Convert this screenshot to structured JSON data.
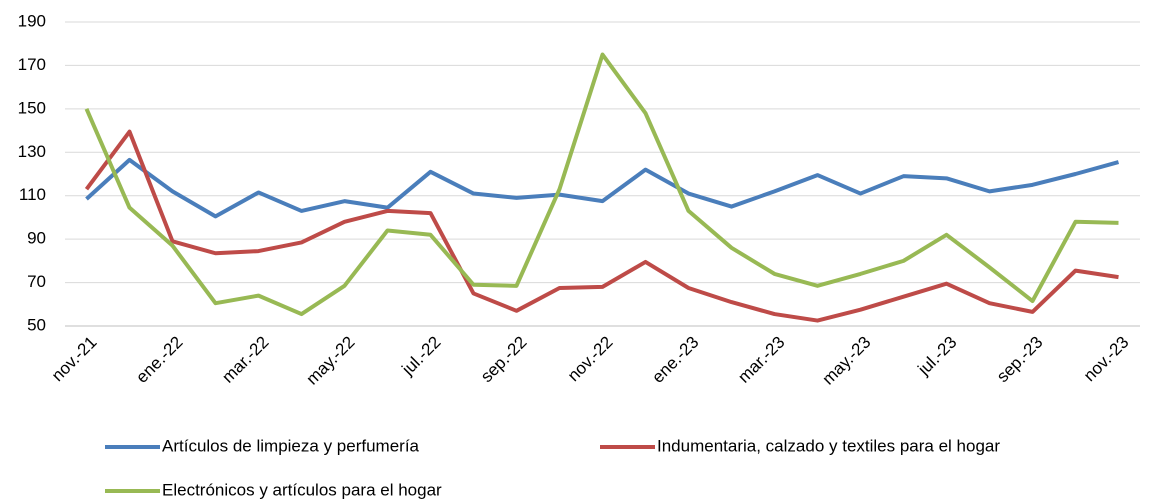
{
  "chart_data": {
    "type": "line",
    "categories": [
      "nov.-21",
      null,
      "ene.-22",
      null,
      "mar.-22",
      null,
      "may.-22",
      null,
      "jul.-22",
      null,
      "sep.-22",
      null,
      "nov.-22",
      null,
      "ene.-23",
      null,
      "mar.-23",
      null,
      "may.-23",
      null,
      "jul.-23",
      null,
      "sep.-23",
      null,
      "nov.-23"
    ],
    "series": [
      {
        "name": "Artículos de limpieza y perfumería",
        "color": "#4a7ebb",
        "values": [
          108.5,
          126.5,
          112,
          100.5,
          111.5,
          103,
          107.5,
          104.5,
          121,
          111,
          109,
          110.5,
          107.5,
          122,
          111,
          105,
          112,
          119.5,
          111,
          119,
          118,
          112,
          115,
          120,
          125.5
        ]
      },
      {
        "name": "Indumentaria, calzado y textiles para el hogar",
        "color": "#be4b48",
        "values": [
          113,
          139.5,
          89,
          83.5,
          84.5,
          88.5,
          98,
          103,
          102,
          65,
          57,
          67.5,
          68,
          79.5,
          67.5,
          61,
          55.5,
          52.5,
          57.5,
          63.5,
          69.5,
          60.5,
          56.5,
          75.5,
          72.5
        ]
      },
      {
        "name": "Electrónicos y artículos para el hogar",
        "color": "#98b954",
        "values": [
          150,
          104.5,
          87,
          60.5,
          64,
          55.5,
          68.5,
          94,
          92,
          69,
          68.5,
          113,
          175,
          148,
          103,
          86,
          74,
          68.5,
          74,
          80,
          92,
          77,
          61.5,
          98,
          97.5
        ]
      }
    ],
    "ylim": [
      50,
      190
    ],
    "yticks": [
      50,
      70,
      90,
      110,
      130,
      150,
      170,
      190
    ],
    "grid": true
  }
}
